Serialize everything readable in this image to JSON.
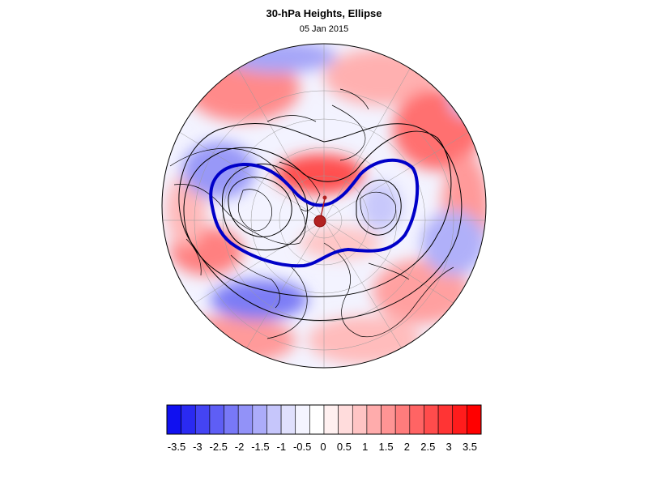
{
  "title": "30-hPa Heights, Ellipse",
  "subtitle": "05 Jan 2015",
  "colorbar": {
    "colors": [
      "#1010f0",
      "#2a2af2",
      "#4444f4",
      "#5e5ef5",
      "#7878f7",
      "#9292f8",
      "#acacfa",
      "#c6c6fb",
      "#e0e0fd",
      "#f4f4ff",
      "#ffffff",
      "#fff0f0",
      "#ffdcdc",
      "#ffc4c4",
      "#ffacac",
      "#ff9494",
      "#ff7c7c",
      "#ff6464",
      "#ff4c4c",
      "#ff3434",
      "#ff1c1c",
      "#ff0000"
    ],
    "tick_labels": [
      "-3.5",
      "-3",
      "-2.5",
      "-2",
      "-1.5",
      "-1",
      "-0.5",
      "0",
      "0.5",
      "1",
      "1.5",
      "2",
      "2.5",
      "3",
      "3.5"
    ]
  },
  "map": {
    "projection": "orthographic-north-polar",
    "fill_field": "height anomaly",
    "vortex_contour_color": "#0000c8",
    "contour_color": "#000000",
    "coastline_color": "#000000",
    "centroid_color": "#b22222"
  }
}
